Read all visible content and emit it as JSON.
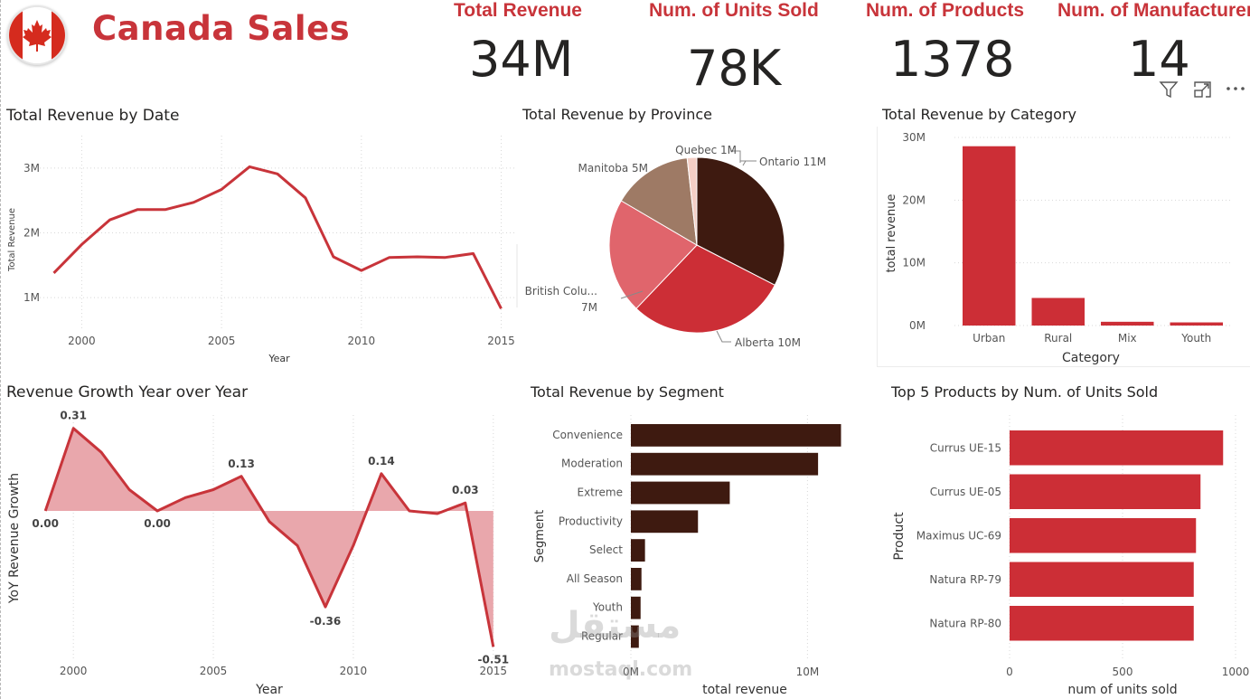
{
  "header": {
    "title": "Canada Sales",
    "flag_icon": "canada-flag-icon",
    "accent_color": "#c8343a"
  },
  "kpis": [
    {
      "label": "Total Revenue",
      "value": "34M"
    },
    {
      "label": "Num. of Units Sold",
      "value": "78K"
    },
    {
      "label": "Num. of Products",
      "value": "1378"
    },
    {
      "label": "Num. of Manufacturers",
      "value": "14"
    }
  ],
  "visual_toolbar": {
    "icons": [
      "filter-icon",
      "focus-mode-icon",
      "more-options-icon"
    ]
  },
  "watermark": {
    "arabic": "مستقل",
    "latin": "mostaql.com"
  },
  "chart_data": [
    {
      "id": "revenue_by_date",
      "type": "line",
      "title": "Total Revenue by Date",
      "xlabel": "Year",
      "ylabel": "Total Revenue",
      "x_ticks": [
        "2000",
        "2005",
        "2010",
        "2015"
      ],
      "y_ticks": [
        "1M",
        "2M",
        "3M"
      ],
      "xlim": [
        1998.5,
        2015.5
      ],
      "ylim": [
        0.5,
        3.5
      ],
      "color": "#c8343a",
      "grid": true,
      "x": [
        1999,
        2000,
        2001,
        2002,
        2003,
        2004,
        2005,
        2006,
        2007,
        2008,
        2009,
        2010,
        2011,
        2012,
        2013,
        2014,
        2015
      ],
      "values": [
        1.38,
        1.82,
        2.2,
        2.36,
        2.36,
        2.47,
        2.67,
        3.02,
        2.91,
        2.54,
        1.63,
        1.42,
        1.62,
        1.63,
        1.62,
        1.68,
        0.83
      ]
    },
    {
      "id": "revenue_by_province",
      "type": "pie",
      "title": "Total Revenue by Province",
      "slices": [
        {
          "label": "Ontario 11M",
          "name": "Ontario",
          "value": 11,
          "color": "#3e1a10"
        },
        {
          "label": "Alberta 10M",
          "name": "Alberta",
          "value": 10,
          "color": "#cc2e36"
        },
        {
          "label": "British Colu...",
          "label2": "7M",
          "name": "British Columbia",
          "value": 7.2,
          "color": "#e0656c"
        },
        {
          "label": "Manitoba 5M",
          "name": "Manitoba",
          "value": 5,
          "color": "#9e7a65"
        },
        {
          "label": "Quebec 1M",
          "name": "Quebec",
          "value": 0.6,
          "color": "#f4cfc6"
        }
      ]
    },
    {
      "id": "revenue_by_category",
      "type": "bar",
      "title": "Total Revenue by Category",
      "xlabel": "Category",
      "ylabel": "total revenue",
      "categories": [
        "Urban",
        "Rural",
        "Mix",
        "Youth"
      ],
      "values": [
        28.6,
        4.4,
        0.6,
        0.5
      ],
      "ylim": [
        0,
        30
      ],
      "y_ticks": [
        "0M",
        "10M",
        "20M",
        "30M"
      ],
      "color": "#cc2e36"
    },
    {
      "id": "yoy_growth",
      "type": "area",
      "title": "Revenue Growth Year over Year",
      "xlabel": "Year",
      "ylabel": "YoY Revenue Growth",
      "x_ticks": [
        "2000",
        "2005",
        "2010",
        "2015"
      ],
      "xlim": [
        1998.8,
        2015.2
      ],
      "ylim": [
        -0.56,
        0.36
      ],
      "color": "#c8343a",
      "fill": "#e9a7ac",
      "grid": true,
      "x": [
        1999,
        2000,
        2001,
        2002,
        2003,
        2004,
        2005,
        2006,
        2007,
        2008,
        2009,
        2010,
        2011,
        2012,
        2013,
        2014,
        2015
      ],
      "values": [
        0.0,
        0.31,
        0.22,
        0.08,
        0.0,
        0.05,
        0.08,
        0.13,
        -0.04,
        -0.13,
        -0.36,
        -0.13,
        0.14,
        0.0,
        -0.01,
        0.03,
        -0.51
      ],
      "data_labels": [
        {
          "i": 0,
          "text": "0.00"
        },
        {
          "i": 1,
          "text": "0.31"
        },
        {
          "i": 4,
          "text": "0.00"
        },
        {
          "i": 7,
          "text": "0.13"
        },
        {
          "i": 10,
          "text": "-0.36"
        },
        {
          "i": 12,
          "text": "0.14"
        },
        {
          "i": 15,
          "text": "0.03"
        },
        {
          "i": 16,
          "text": "-0.51"
        }
      ]
    },
    {
      "id": "revenue_by_segment",
      "type": "bar",
      "orientation": "horizontal",
      "title": "Total Revenue by Segment",
      "xlabel": "total revenue",
      "ylabel": "Segment",
      "categories": [
        "Convenience",
        "Moderation",
        "Extreme",
        "Productivity",
        "Select",
        "All Season",
        "Youth",
        "Regular"
      ],
      "values": [
        11.9,
        10.6,
        5.6,
        3.8,
        0.8,
        0.6,
        0.55,
        0.45
      ],
      "xlim": [
        0,
        13
      ],
      "x_ticks": [
        "0M",
        "10M"
      ],
      "color": "#3e1a10"
    },
    {
      "id": "top5_products",
      "type": "bar",
      "orientation": "horizontal",
      "title": "Top 5 Products by Num. of Units Sold",
      "xlabel": "num of units sold",
      "ylabel": "Product",
      "categories": [
        "Currus UE-15",
        "Currus UE-05",
        "Maximus UC-69",
        "Natura RP-79",
        "Natura RP-80"
      ],
      "values": [
        945,
        845,
        825,
        815,
        815
      ],
      "xlim": [
        0,
        1000
      ],
      "x_ticks": [
        "0",
        "500",
        "1000"
      ],
      "color": "#cc2e36"
    }
  ]
}
